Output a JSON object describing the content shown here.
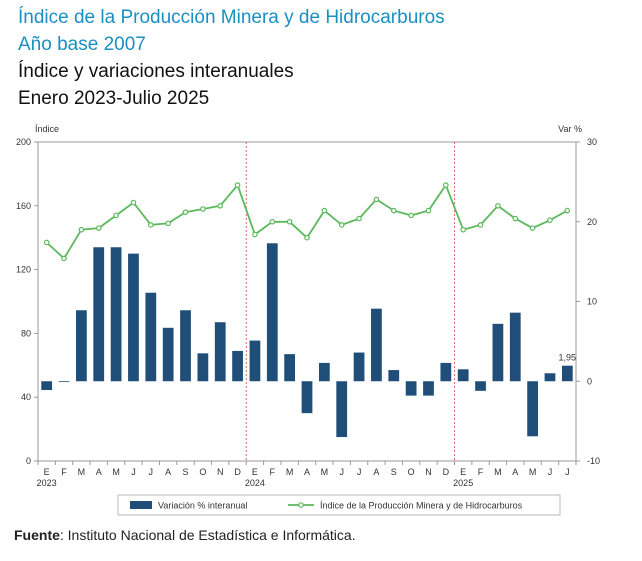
{
  "header": {
    "title1": "Índice de la Producción Minera y de Hidrocarburos",
    "title2": "Año base 2007",
    "title3": "Índice y variaciones interanuales",
    "title4": "Enero 2023-Julio 2025"
  },
  "source": {
    "label": "Fuente",
    "text": ": Instituto Nacional de Estadística e Informática."
  },
  "colors": {
    "bar": "#1f4e79",
    "line": "#5cb85c",
    "separator": "#e06666",
    "axis": "#999999"
  },
  "chart_data": {
    "type": "bar+line",
    "left_axis_label": "Índice",
    "right_axis_label": "Var %",
    "left_ylim": [
      0,
      200
    ],
    "left_ticks": [
      0,
      40,
      80,
      120,
      160,
      200
    ],
    "right_ylim": [
      -10,
      30
    ],
    "right_ticks": [
      -10,
      0,
      10,
      20,
      30
    ],
    "categories": [
      "E",
      "F",
      "M",
      "A",
      "M",
      "J",
      "J",
      "A",
      "S",
      "O",
      "N",
      "D",
      "E",
      "F",
      "M",
      "A",
      "M",
      "J",
      "J",
      "A",
      "S",
      "O",
      "N",
      "D",
      "E",
      "F",
      "M",
      "A",
      "M",
      "J",
      "J"
    ],
    "year_labels": [
      {
        "index": 0,
        "label": "2023"
      },
      {
        "index": 12,
        "label": "2024"
      },
      {
        "index": 24,
        "label": "2025"
      }
    ],
    "separators_after_index": [
      11,
      23
    ],
    "series": [
      {
        "name": "Variación % interanual",
        "type": "bar",
        "axis": "right",
        "values": [
          -1.1,
          -0.1,
          8.9,
          16.8,
          16.8,
          16.0,
          11.1,
          6.7,
          8.9,
          3.5,
          7.4,
          3.8,
          5.1,
          17.3,
          3.4,
          -4.0,
          2.3,
          -7.0,
          3.6,
          9.1,
          1.4,
          -1.8,
          -1.8,
          2.3,
          1.5,
          -1.2,
          7.2,
          8.6,
          -6.9,
          1.0,
          1.95
        ]
      },
      {
        "name": "Índice de la Producción Minera y de Hidrocarburos",
        "type": "line",
        "axis": "left",
        "values": [
          137,
          127,
          145,
          146,
          154,
          162,
          148,
          149,
          156,
          158,
          160,
          173,
          142,
          150,
          150,
          140,
          157,
          148,
          152,
          164,
          157,
          154,
          157,
          173,
          145,
          148,
          160,
          152,
          146,
          151,
          157
        ]
      }
    ],
    "data_labels": [
      {
        "series": 0,
        "index": 30,
        "text": "1,95"
      }
    ]
  }
}
